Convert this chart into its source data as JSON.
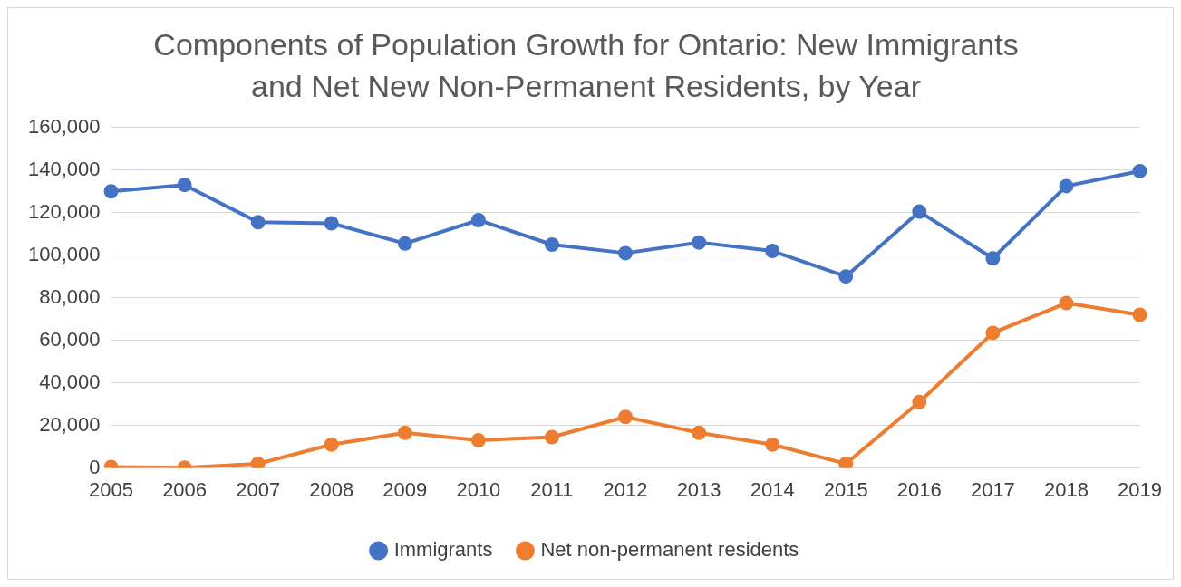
{
  "chart_data": {
    "type": "line",
    "title": "Components of Population Growth for Ontario: New Immigrants and Net New Non-Permanent Residents, by Year",
    "categories": [
      "2005",
      "2006",
      "2007",
      "2008",
      "2009",
      "2010",
      "2011",
      "2012",
      "2013",
      "2014",
      "2015",
      "2016",
      "2017",
      "2018",
      "2019"
    ],
    "series": [
      {
        "name": "Immigrants",
        "color": "#4472c4",
        "values": [
          130000,
          133000,
          115500,
          115000,
          105500,
          116500,
          105000,
          101000,
          106000,
          102000,
          90000,
          120500,
          98500,
          132500,
          139500
        ]
      },
      {
        "name": "Net non-permanent residents",
        "color": "#ed7d31",
        "values": [
          500,
          200,
          2000,
          11000,
          16500,
          13000,
          14500,
          24000,
          16500,
          11000,
          2000,
          31000,
          63500,
          77500,
          72000
        ]
      }
    ],
    "ylim": [
      0,
      160000
    ],
    "yticks": [
      0,
      {
        "value": 20000,
        "label": "20,000"
      },
      {
        "value": 40000,
        "label": "40,000"
      },
      {
        "value": 60000,
        "label": "60,000"
      },
      {
        "value": 80000,
        "label": "80,000"
      },
      {
        "value": 100000,
        "label": "100,000"
      },
      {
        "value": 120000,
        "label": "120,000"
      },
      {
        "value": 140000,
        "label": "140,000"
      },
      {
        "value": 160000,
        "label": "160,000"
      }
    ],
    "grid": "y",
    "legend": "bottom",
    "marker": "circle",
    "line_style": "solid"
  }
}
